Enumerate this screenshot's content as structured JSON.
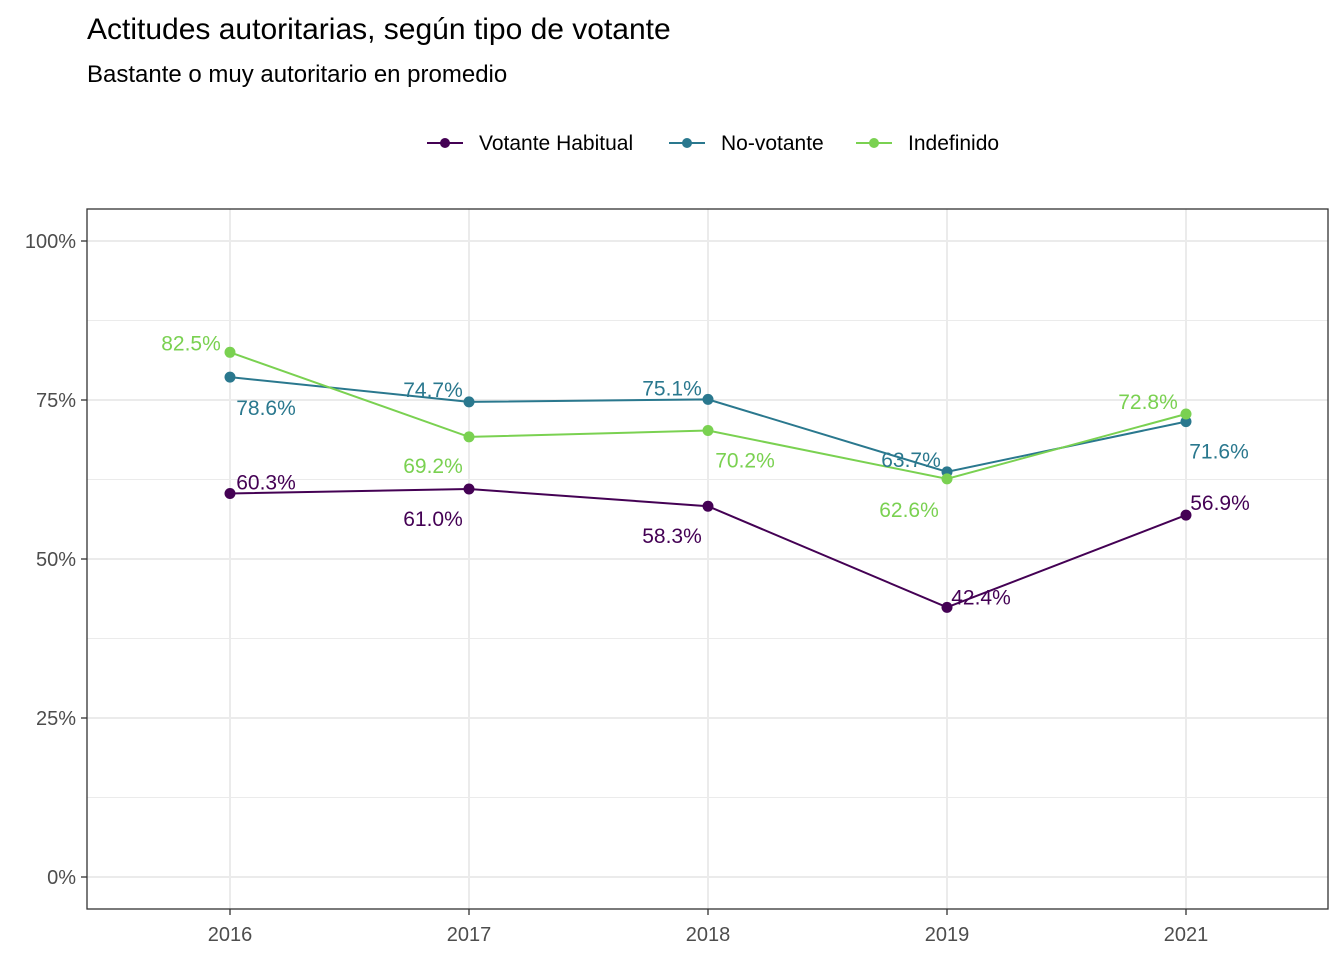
{
  "chart_data": {
    "type": "line",
    "title": "Actitudes autoritarias, según tipo de votante",
    "subtitle": "Bastante o muy autoritario en promedio",
    "xlabel": "",
    "ylabel": "",
    "categories": [
      "2016",
      "2017",
      "2018",
      "2019",
      "2021"
    ],
    "ylim": [
      0,
      100
    ],
    "y_ticks": [
      "0%",
      "25%",
      "50%",
      "75%",
      "100%"
    ],
    "grid": true,
    "legend_position": "top",
    "series": [
      {
        "name": "Votante Habitual",
        "color": "#440154",
        "values": [
          60.3,
          61.0,
          58.3,
          42.4,
          56.9
        ],
        "labels": [
          "60.3%",
          "61.0%",
          "58.3%",
          "42.4%",
          "56.9%"
        ]
      },
      {
        "name": "No-votante",
        "color": "#2a788e",
        "values": [
          78.6,
          74.7,
          75.1,
          63.7,
          71.6
        ],
        "labels": [
          "78.6%",
          "74.7%",
          "75.1%",
          "63.7%",
          "71.6%"
        ]
      },
      {
        "name": "Indefinido",
        "color": "#7ad151",
        "values": [
          82.5,
          69.2,
          70.2,
          62.6,
          72.8
        ],
        "labels": [
          "82.5%",
          "69.2%",
          "70.2%",
          "62.6%",
          "72.8%"
        ]
      }
    ]
  }
}
